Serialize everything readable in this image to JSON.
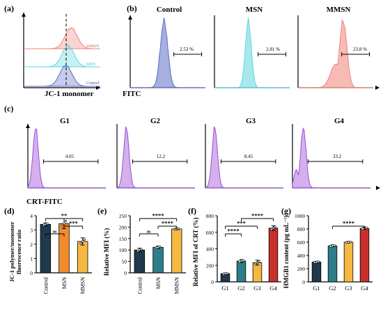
{
  "panel_labels": [
    "(a)",
    "(b)",
    "(c)",
    "(d)",
    "(e)",
    "(f)",
    "(g)"
  ],
  "colors": {
    "control": "#5b6ec6",
    "msn": "#5cd6e0",
    "mmsn": "#ee8478",
    "purple": "#b070e0",
    "bar_dark": "#1f3a4d",
    "bar_teal": "#2d7e8a",
    "bar_orange": "#f28c2a",
    "bar_gold": "#f5b942",
    "bar_red": "#c9302c"
  },
  "chart_data": [
    {
      "id": "a",
      "type": "histogram-overlay",
      "xlabel": "JC-1 monomer",
      "series": [
        {
          "name": "MMSN",
          "peak": 0.62
        },
        {
          "name": "MSN",
          "peak": 0.58
        },
        {
          "name": "Control",
          "peak": 0.55
        }
      ],
      "gate_line": "dashed"
    },
    {
      "id": "b",
      "type": "histogram",
      "xlabel": "FITC",
      "panels": [
        {
          "title": "Control",
          "gate": "2.53 %",
          "peak": 0.45
        },
        {
          "title": "MSN",
          "gate": "2.81 %",
          "peak": 0.45
        },
        {
          "title": "MMSN",
          "gate": "23.8 %",
          "peak": 0.6
        }
      ]
    },
    {
      "id": "c",
      "type": "histogram",
      "xlabel": "CRT-FITC",
      "panels": [
        {
          "title": "G1",
          "gate": "4.05",
          "peak": 0.1
        },
        {
          "title": "G2",
          "gate": "12.2",
          "peak": 0.12
        },
        {
          "title": "G3",
          "gate": "8.45",
          "peak": 0.12
        },
        {
          "title": "G4",
          "gate": "33.2",
          "peak": 0.14
        }
      ]
    },
    {
      "id": "d",
      "type": "bar",
      "ylabel": "JC-1 polymer/monomer\nfluorescence ratio",
      "categories": [
        "Control",
        "MSN",
        "MMSN"
      ],
      "values": [
        3.4,
        3.45,
        2.2
      ],
      "errors": [
        0.1,
        0.35,
        0.25
      ],
      "ylim": [
        0,
        4
      ],
      "yticks": [
        "0",
        "1",
        "2",
        "3",
        "4"
      ],
      "significance": [
        {
          "from": 0,
          "to": 1,
          "label": "ns",
          "level": 0
        },
        {
          "from": 1,
          "to": 2,
          "label": "***",
          "level": 1
        },
        {
          "from": 0,
          "to": 2,
          "label": "**",
          "level": 2
        }
      ]
    },
    {
      "id": "e",
      "type": "bar",
      "ylabel": "Relative MFI (%)",
      "categories": [
        "Control",
        "MSN",
        "MMSN"
      ],
      "values": [
        100,
        112,
        192
      ],
      "errors": [
        8,
        5,
        4
      ],
      "ylim": [
        0,
        250
      ],
      "yticks": [
        "0",
        "50",
        "100",
        "150",
        "200",
        "250"
      ],
      "significance": [
        {
          "from": 0,
          "to": 1,
          "label": "ns",
          "level": 0
        },
        {
          "from": 1,
          "to": 2,
          "label": "****",
          "level": 1
        },
        {
          "from": 0,
          "to": 2,
          "label": "****",
          "level": 2
        }
      ]
    },
    {
      "id": "f",
      "type": "bar",
      "ylabel": "Relative MFI of CRT (%)",
      "categories": [
        "G1",
        "G2",
        "G3",
        "G4"
      ],
      "values": [
        100,
        252,
        232,
        650
      ],
      "errors": [
        8,
        18,
        30,
        30
      ],
      "ylim": [
        0,
        800
      ],
      "yticks": [
        "0",
        "200",
        "400",
        "600",
        "800"
      ],
      "significance": [
        {
          "from": 0,
          "to": 1,
          "label": "****",
          "level": 0
        },
        {
          "from": 0,
          "to": 2,
          "label": "***",
          "level": 1
        },
        {
          "from": 1,
          "to": 3,
          "label": "****",
          "level": 2
        }
      ]
    },
    {
      "id": "g",
      "type": "bar",
      "ylabel": "HMGB1 content (pg mL⁻¹)",
      "categories": [
        "G1",
        "G2",
        "G3",
        "G4"
      ],
      "values": [
        300,
        545,
        600,
        810
      ],
      "errors": [
        12,
        15,
        12,
        18
      ],
      "ylim": [
        0,
        1000
      ],
      "yticks": [
        "0",
        "200",
        "400",
        "600",
        "800",
        "1000"
      ],
      "significance": [
        {
          "from": 1,
          "to": 3,
          "label": "****",
          "level": 1
        }
      ]
    }
  ]
}
